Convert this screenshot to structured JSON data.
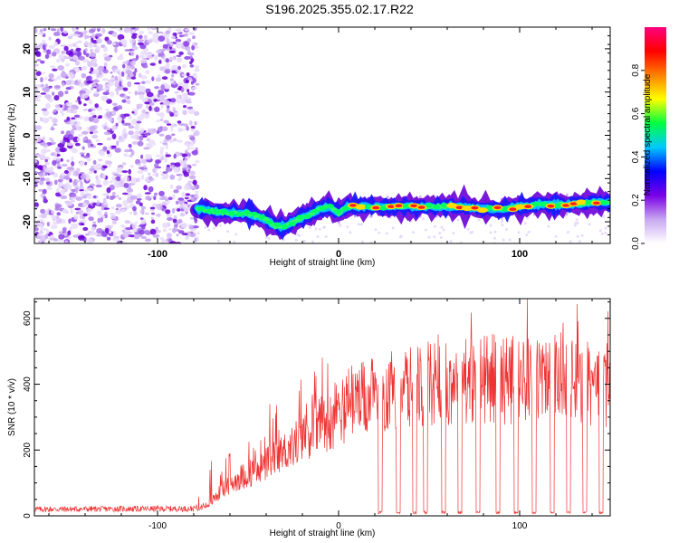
{
  "title": "S196.2025.355.02.17.R22",
  "chart_data": [
    {
      "type": "heatmap",
      "name": "spectrogram",
      "xlabel": "Height of straight line (km)",
      "ylabel": "Frequency (Hz)",
      "xlim": [
        -168,
        150
      ],
      "ylim": [
        -25,
        25
      ],
      "xticks": [
        -100,
        0,
        100
      ],
      "xtick_labels": [
        "-100",
        "0",
        "100"
      ],
      "yticks": [
        -20,
        -10,
        0,
        10,
        20
      ],
      "ytick_labels": [
        "-20",
        "-10",
        "0",
        "10",
        "20"
      ],
      "noise_region_x": [
        -168,
        -78
      ],
      "signal_track": {
        "x": [
          -78,
          -70,
          -60,
          -50,
          -40,
          -35,
          -30,
          -25,
          -20,
          -15,
          -10,
          -5,
          0,
          5,
          10,
          20,
          30,
          40,
          50,
          60,
          70,
          80,
          90,
          100,
          110,
          120,
          130,
          140,
          150
        ],
        "freq": [
          -17,
          -17.5,
          -18,
          -18,
          -19.5,
          -21,
          -21,
          -20,
          -19,
          -18,
          -17,
          -16.5,
          -18,
          -16.5,
          -16.5,
          -16.5,
          -16.5,
          -16.5,
          -16.5,
          -16.5,
          -16.5,
          -17,
          -17,
          -16.5,
          -16,
          -16,
          -16,
          -15.5,
          -15.5
        ]
      },
      "colorbar": {
        "label": "Normalized spectral amplitude",
        "range": [
          0,
          1
        ],
        "ticks": [
          0,
          0.2,
          0.4,
          0.6,
          0.8
        ],
        "tick_labels": [
          "0.0",
          "0.2",
          "0.4",
          "0.6",
          "0.8"
        ],
        "colors": [
          "#ffffff",
          "#c8a8f0",
          "#7a00e6",
          "#0000ff",
          "#00c8ff",
          "#00ff40",
          "#ffff00",
          "#ff8000",
          "#ff0000",
          "#ff007f"
        ]
      }
    },
    {
      "type": "line",
      "name": "snr",
      "xlabel": "Height of straight line (km)",
      "ylabel": "SNR (10 * v/v)",
      "xlim": [
        -168,
        150
      ],
      "ylim": [
        0,
        660
      ],
      "xticks": [
        -100,
        0,
        100
      ],
      "xtick_labels": [
        "-100",
        "0",
        "100"
      ],
      "yticks": [
        0,
        200,
        400,
        600
      ],
      "ytick_labels": [
        "0",
        "200",
        "400",
        "600"
      ],
      "color": "#ee3333",
      "envelope": {
        "x": [
          -168,
          -80,
          -72,
          -65,
          -55,
          -45,
          -35,
          -25,
          -15,
          -5,
          5,
          15,
          25,
          35,
          45,
          55,
          65,
          75,
          85,
          95,
          105,
          115,
          125,
          135,
          150
        ],
        "y": [
          20,
          22,
          40,
          90,
          140,
          170,
          210,
          260,
          320,
          360,
          400,
          430,
          450,
          470,
          480,
          490,
          500,
          500,
          510,
          500,
          490,
          500,
          510,
          480,
          470
        ]
      },
      "dropouts_x": [
        23,
        33,
        42,
        48,
        58,
        67,
        77,
        88,
        98,
        108,
        118,
        127,
        136,
        145
      ]
    }
  ]
}
